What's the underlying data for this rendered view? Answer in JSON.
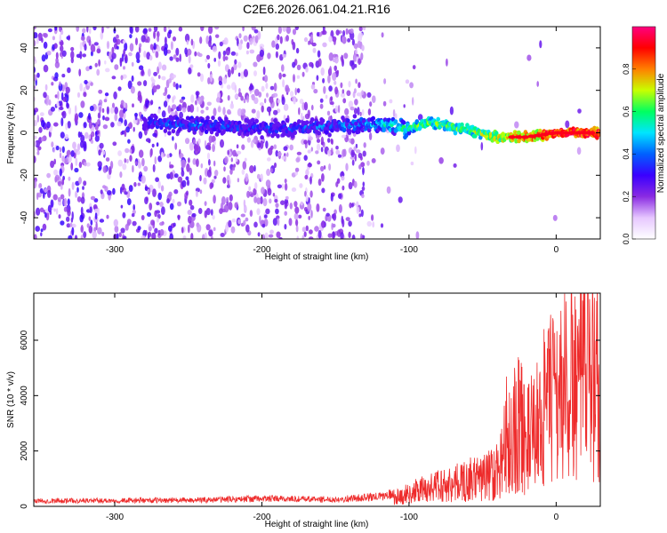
{
  "page": {
    "title": "C2E6.2026.061.04.21.R16"
  },
  "chart_data": [
    {
      "type": "heatmap",
      "title": "C2E6.2026.061.04.21.R16",
      "xlabel": "Height of straight line (km)",
      "ylabel": "Frequency (Hz)",
      "xlim": [
        -355,
        30
      ],
      "ylim": [
        -50,
        50
      ],
      "x_ticks": [
        -300,
        -200,
        -100,
        0
      ],
      "x_tick_labels": [
        "-300",
        "-200",
        "-100",
        "0"
      ],
      "y_ticks": [
        -40,
        -20,
        0,
        20,
        40
      ],
      "y_tick_labels": [
        "-40",
        "-20",
        "0",
        "20",
        "40"
      ],
      "colorbar": {
        "label": "Normalized spectral amplitude",
        "range": [
          0.0,
          1.0
        ],
        "ticks": [
          0.0,
          0.2,
          0.4,
          0.6,
          0.8
        ],
        "tick_labels": [
          "0.0",
          "0.2",
          "0.4",
          "0.6",
          "0.8"
        ],
        "colors": [
          "#ffffff",
          "#e6c7ff",
          "#8a2be2",
          "#3a00ff",
          "#0060ff",
          "#00e5ff",
          "#00ff60",
          "#c8ff00",
          "#ff8000",
          "#ff0000",
          "#ff0080"
        ]
      },
      "ridge": {
        "x": [
          -280,
          -250,
          -200,
          -150,
          -120,
          -100,
          -85,
          -60,
          -40,
          -20,
          0,
          30
        ],
        "y": [
          5,
          4,
          2,
          3,
          4,
          2,
          5,
          1,
          -2,
          -2,
          0,
          0
        ],
        "amplitude": [
          0.3,
          0.35,
          0.3,
          0.35,
          0.45,
          0.55,
          0.6,
          0.6,
          0.7,
          0.8,
          0.9,
          0.95
        ]
      },
      "grid": false
    },
    {
      "type": "line",
      "xlabel": "Height of straight line (km)",
      "ylabel": "SNR (10 * v/v)",
      "xlim": [
        -355,
        30
      ],
      "ylim": [
        0,
        7700
      ],
      "x_ticks": [
        -300,
        -200,
        -100,
        0
      ],
      "x_tick_labels": [
        "-300",
        "-200",
        "-100",
        "0"
      ],
      "y_ticks": [
        0,
        2000,
        4000,
        6000
      ],
      "y_tick_labels": [
        "0",
        "2000",
        "4000",
        "6000"
      ],
      "line_color": "#ee2b2b",
      "envelope": {
        "x": [
          -355,
          -250,
          -200,
          -150,
          -120,
          -110,
          -100,
          -90,
          -80,
          -70,
          -60,
          -50,
          -45,
          -40,
          -35,
          -30,
          -28,
          -25,
          -20,
          -15,
          -10,
          -5,
          0,
          10,
          20,
          30
        ],
        "y": [
          200,
          220,
          280,
          250,
          350,
          450,
          700,
          900,
          1100,
          1200,
          1400,
          1500,
          1700,
          2000,
          2500,
          3000,
          4300,
          4500,
          3500,
          4000,
          5000,
          5500,
          6000,
          6600,
          7100,
          7600
        ]
      },
      "grid": false
    }
  ]
}
